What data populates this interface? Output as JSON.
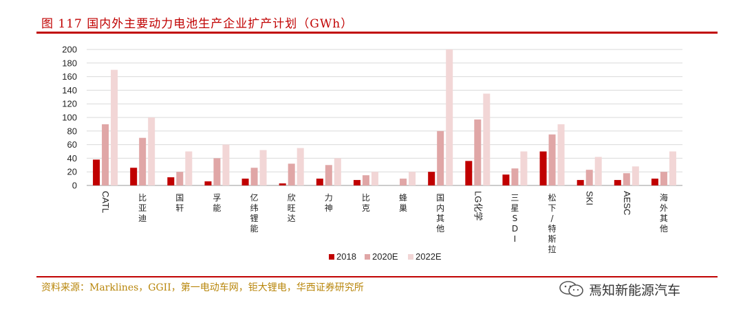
{
  "figure": {
    "title": "图 117  国内外主要动力电池生产企业扩产计划（GWh）",
    "source": "资料来源：Marklines，GGII，第一电动车网，钜大锂电，华西证券研究所",
    "watermark": "焉知新能源汽车",
    "watermark_icon": "wechat-icon"
  },
  "colors": {
    "s2018": "#C00000",
    "s2020E": "#E0A6A6",
    "s2022E": "#F2D6D6",
    "accent": "#C00000"
  },
  "chart_data": {
    "type": "bar",
    "categories": [
      "CATL",
      "比亚迪",
      "国轩",
      "孚能",
      "亿纬锂能",
      "欣旺达",
      "力神",
      "比克",
      "蜂巢",
      "国内其他",
      "LG化学",
      "三星SDI",
      "松下/特斯拉",
      "SKI",
      "AESC",
      "海外其他"
    ],
    "series": [
      {
        "name": "2018",
        "values": [
          38,
          26,
          12,
          6,
          10,
          3,
          10,
          8,
          0,
          20,
          36,
          16,
          50,
          8,
          8,
          10
        ]
      },
      {
        "name": "2020E",
        "values": [
          90,
          70,
          20,
          40,
          26,
          32,
          30,
          15,
          10,
          80,
          97,
          25,
          75,
          23,
          18,
          20
        ]
      },
      {
        "name": "2022E",
        "values": [
          170,
          100,
          50,
          60,
          52,
          55,
          40,
          20,
          20,
          200,
          135,
          50,
          90,
          42,
          28,
          50
        ]
      }
    ],
    "ylim": [
      0,
      200
    ],
    "yticks": [
      0,
      20,
      40,
      60,
      80,
      100,
      120,
      140,
      160,
      180,
      200
    ],
    "grid": true,
    "legend": "bottom"
  }
}
